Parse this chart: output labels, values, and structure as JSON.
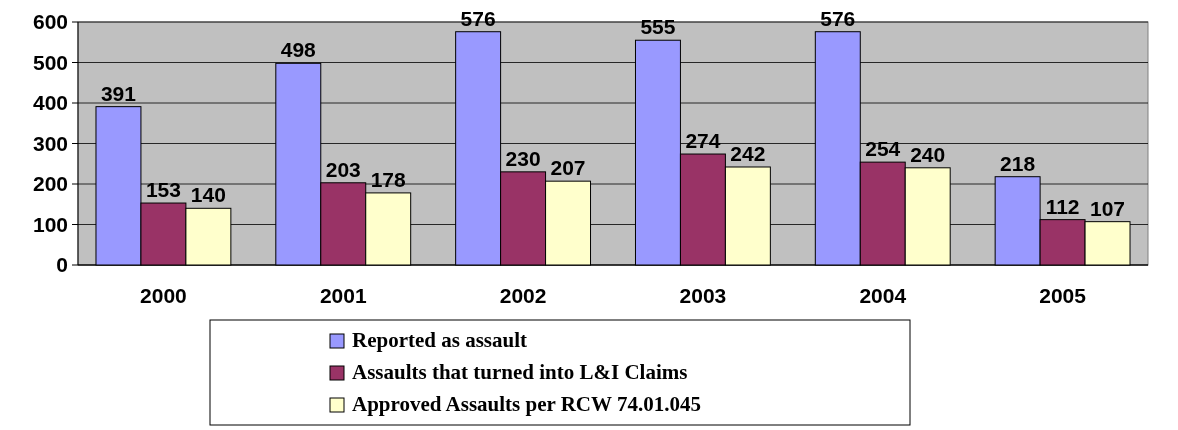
{
  "chart_data": {
    "type": "bar",
    "categories": [
      "2000",
      "2001",
      "2002",
      "2003",
      "2004",
      "2005"
    ],
    "series": [
      {
        "name": "Reported as assault",
        "color": "#9999ff",
        "values": [
          391,
          498,
          576,
          555,
          576,
          218
        ]
      },
      {
        "name": "Assaults that turned into L&I Claims",
        "color": "#993366",
        "values": [
          153,
          203,
          230,
          274,
          254,
          112
        ]
      },
      {
        "name": "Approved Assaults per RCW 74.01.045",
        "color": "#ffffcc",
        "values": [
          140,
          178,
          207,
          242,
          240,
          107
        ]
      }
    ],
    "ylim": [
      0,
      600
    ],
    "yticks": [
      0,
      100,
      200,
      300,
      400,
      500,
      600
    ],
    "grid": "y",
    "legend": "bottom",
    "data_labels": true
  }
}
